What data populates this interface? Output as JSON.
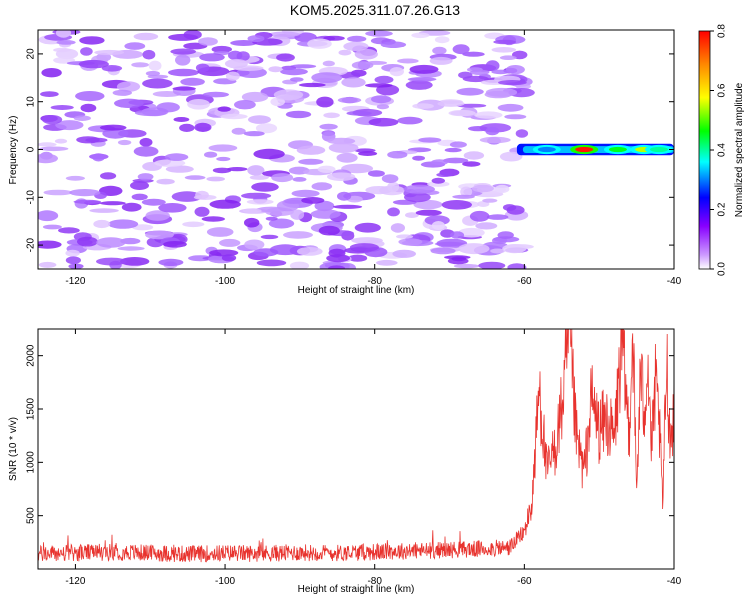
{
  "figure": {
    "title": "KOM5.2025.311.07.26.G13"
  },
  "chart_data": [
    {
      "type": "heatmap",
      "title": "",
      "xlabel": "Height of straight line (km)",
      "ylabel": "Frequency (Hz)",
      "xlim": [
        -125,
        -40
      ],
      "ylim": [
        -25,
        25
      ],
      "x_ticks": [
        -120,
        -100,
        -80,
        -60,
        -40
      ],
      "y_ticks": [
        -20,
        -10,
        0,
        10,
        20
      ],
      "noise_region": {
        "x_range": [
          -124,
          -60
        ],
        "y_range": [
          -25,
          25
        ],
        "amplitude_range": [
          0.03,
          0.15
        ],
        "color": "purple"
      },
      "signal_band": {
        "x_range": [
          -61,
          -40
        ],
        "frequency_center": 0,
        "frequency_halfwidth": 1.2
      },
      "signal_peaks": [
        {
          "x": -57,
          "amplitude": 0.3
        },
        {
          "x": -52,
          "amplitude": 0.78
        },
        {
          "x": -47.5,
          "amplitude": 0.45
        },
        {
          "x": -44,
          "amplitude": 0.55
        },
        {
          "x": -42,
          "amplitude": 0.4
        }
      ],
      "colorbar": {
        "label": "Normalized spectral amplitude",
        "range": [
          0,
          0.8
        ],
        "ticks": [
          0.0,
          0.2,
          0.4,
          0.6,
          0.8
        ],
        "tick_labels": [
          "0.0",
          "0.2",
          "0.4",
          "0.6",
          "0.8"
        ],
        "colors": [
          "#ffffff",
          "#8800ff",
          "#0000ff",
          "#00ffff",
          "#00ff00",
          "#ffff00",
          "#ff8800",
          "#ff0000"
        ]
      }
    },
    {
      "type": "line",
      "title": "",
      "xlabel": "Height of straight line (km)",
      "ylabel": "SNR (10 * v/v)",
      "xlim": [
        -125,
        -40
      ],
      "ylim": [
        0,
        2250
      ],
      "x_ticks": [
        -120,
        -100,
        -80,
        -60,
        -40
      ],
      "y_ticks": [
        500,
        1000,
        1500,
        2000
      ],
      "series": [
        {
          "name": "SNR",
          "color": "#e8332e",
          "baseline_x_range": [
            -125,
            -60
          ],
          "baseline_mean": 150,
          "baseline_spread": 80,
          "x": [
            -125,
            -120,
            -115,
            -110,
            -105,
            -100,
            -95,
            -90,
            -85,
            -80,
            -75,
            -70,
            -65,
            -62,
            -60,
            -59,
            -58,
            -57,
            -56,
            -55,
            -54,
            -53,
            -52,
            -51,
            -50,
            -49,
            -48,
            -47,
            -46,
            -45.5,
            -45,
            -44.5,
            -44,
            -43.5,
            -43,
            -42.5,
            -42,
            -41.5,
            -41,
            -40.5,
            -40
          ],
          "y": [
            140,
            150,
            160,
            150,
            140,
            150,
            145,
            155,
            150,
            160,
            170,
            180,
            190,
            200,
            350,
            600,
            1700,
            900,
            1100,
            1500,
            2150,
            1200,
            900,
            1600,
            1300,
            1400,
            1200,
            2100,
            1300,
            2250,
            700,
            1800,
            1500,
            2000,
            1100,
            1700,
            1400,
            600,
            2000,
            1200,
            1500
          ]
        }
      ]
    }
  ]
}
